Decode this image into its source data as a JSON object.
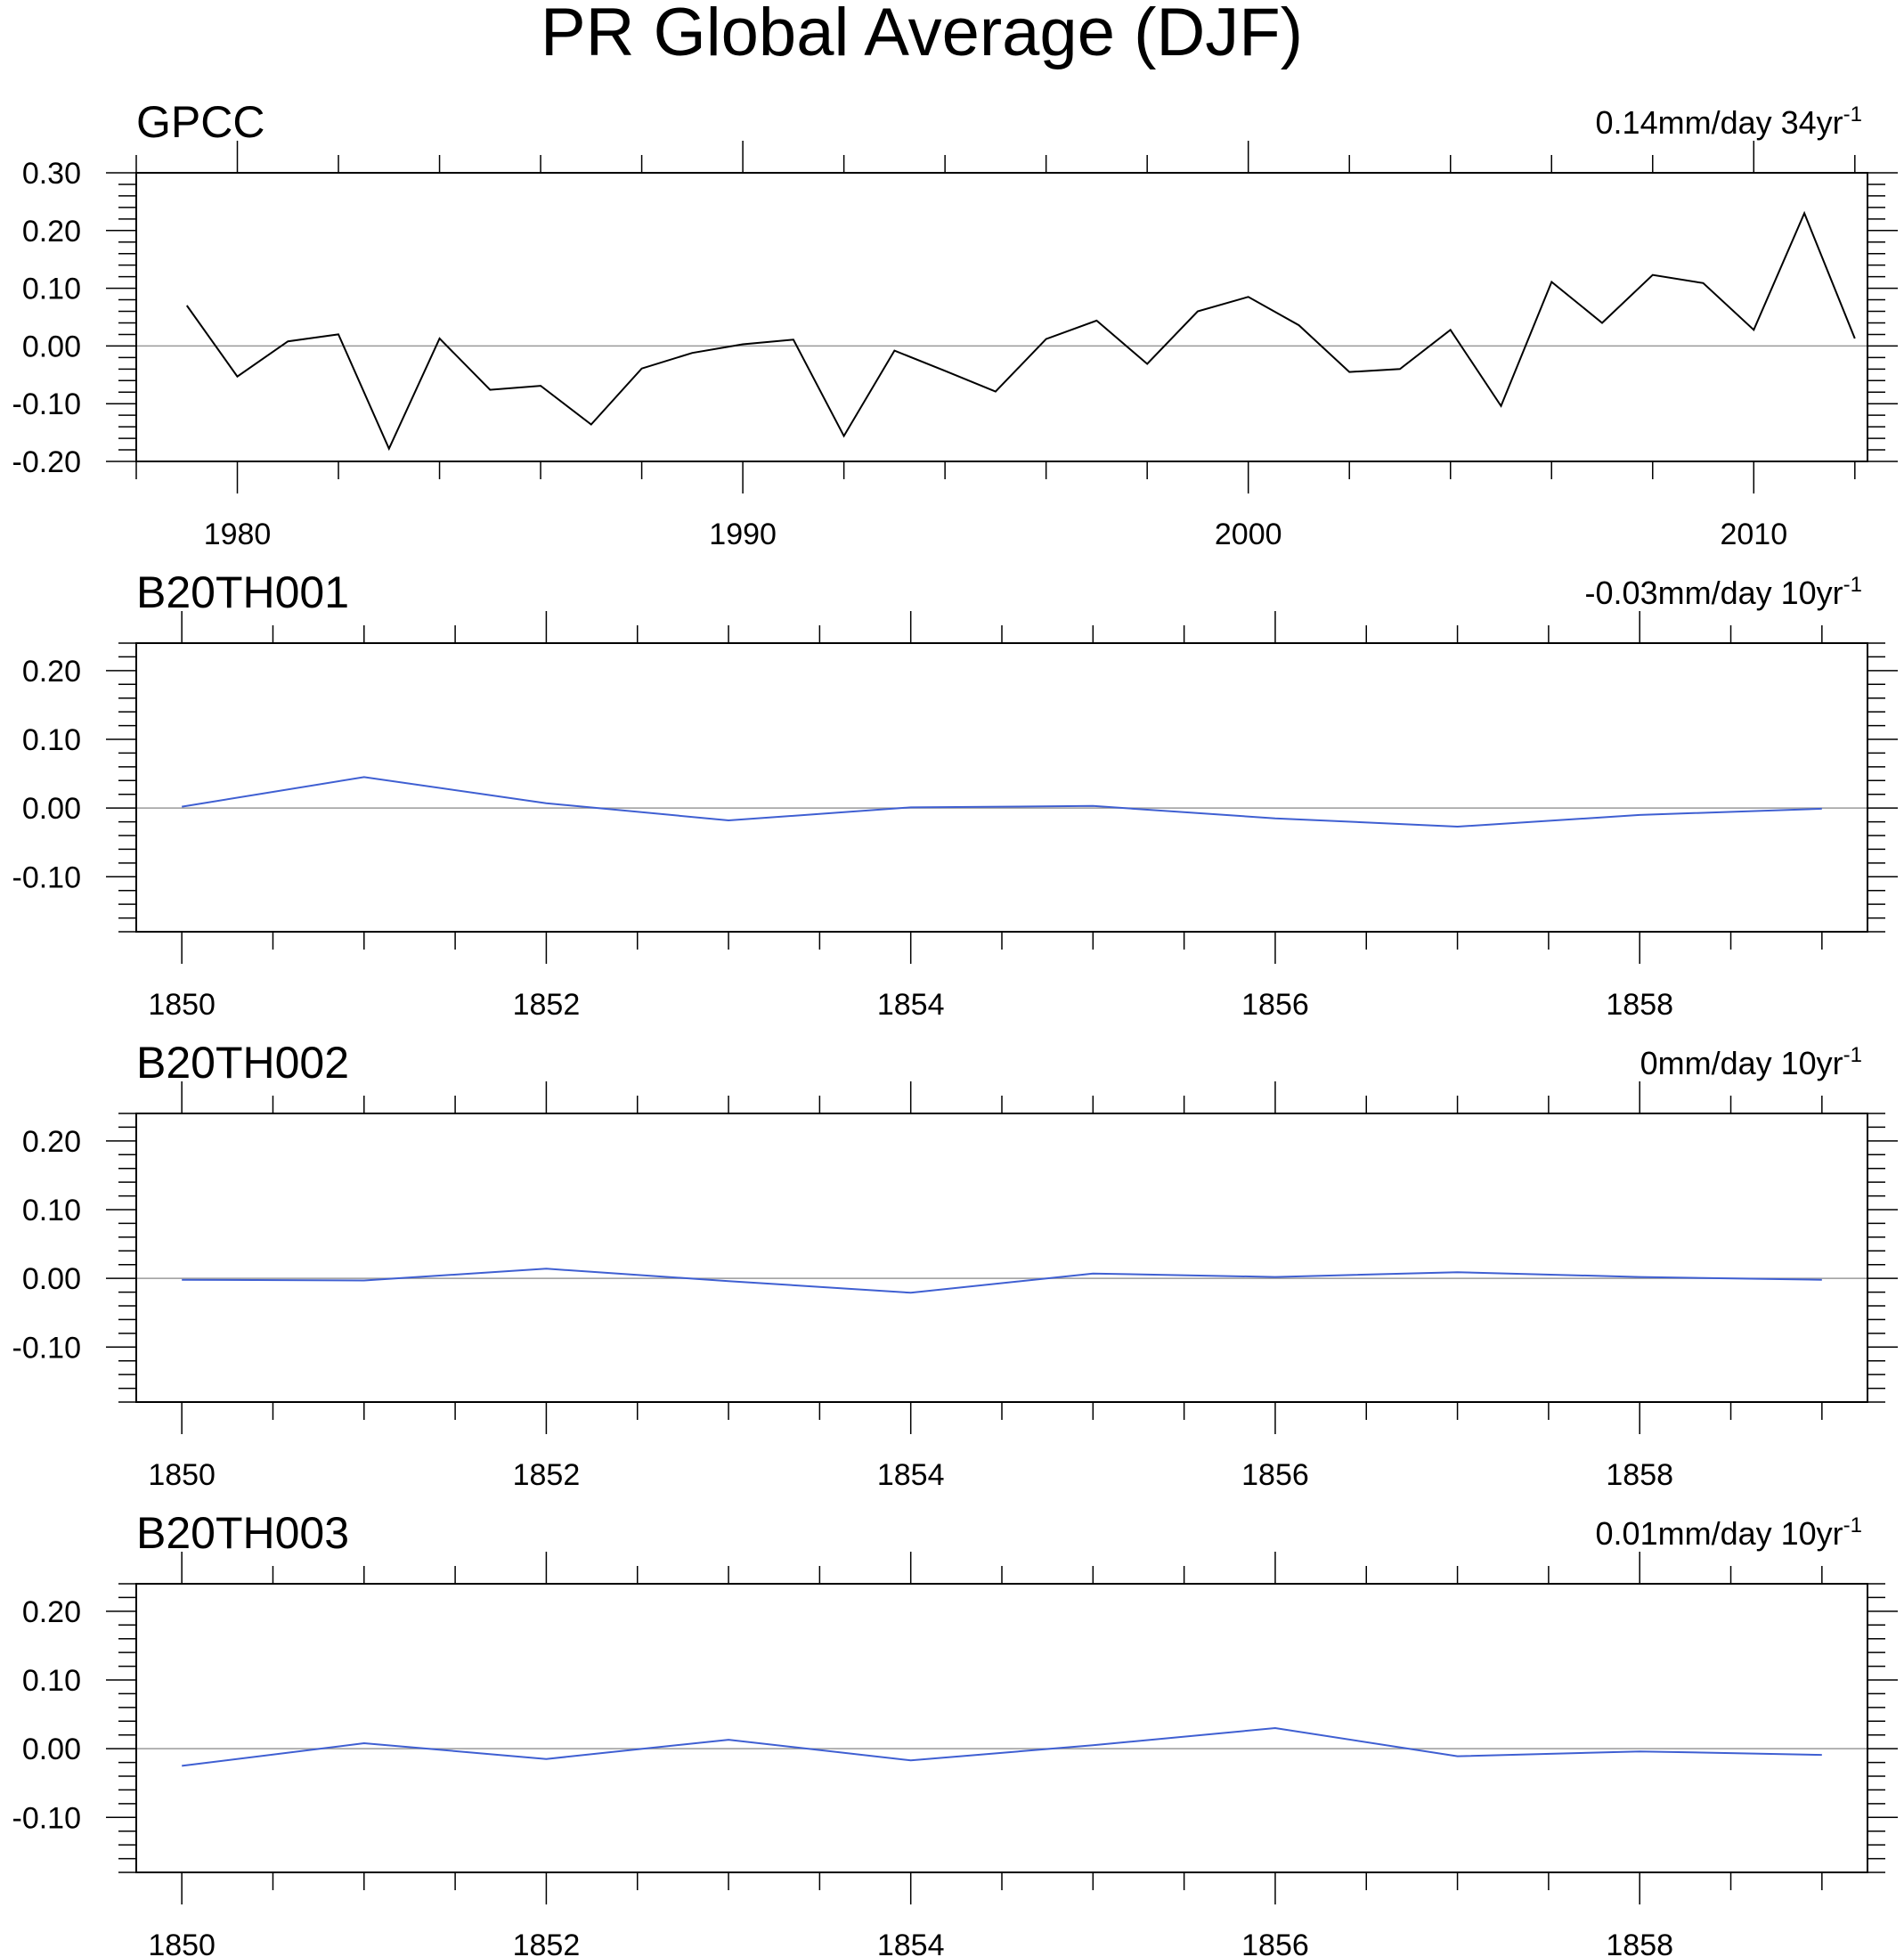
{
  "figure": {
    "title": "PR Global Average (DJF)"
  },
  "colors": {
    "gpcc_line": "#000000",
    "model_line": "#3f5fd2",
    "zero_line": "#9a9a9a",
    "axis": "#000000"
  },
  "chart_data": [
    {
      "type": "line",
      "title": "GPCC",
      "trend_label": "0.14mm/day 34yr",
      "trend_superscript": "-1",
      "xlabel": "",
      "ylabel": "",
      "xlim": [
        1978,
        2012.25
      ],
      "ylim": [
        -0.2,
        0.3
      ],
      "xticks": [
        1980,
        1990,
        2000,
        2010
      ],
      "xtick_labels": [
        "1980",
        "1990",
        "2000",
        "2010"
      ],
      "xminor": 2,
      "yticks": [
        -0.2,
        -0.1,
        0.0,
        0.1,
        0.2,
        0.3
      ],
      "ytick_labels": [
        "-0.20",
        "-0.10",
        "0.00",
        "0.10",
        "0.20",
        "0.30"
      ],
      "yminor": 0.02,
      "zero_line": true,
      "series": [
        {
          "color": "gpcc_line",
          "x": [
            1979,
            1980,
            1981,
            1982,
            1983,
            1984,
            1985,
            1986,
            1987,
            1988,
            1989,
            1990,
            1991,
            1992,
            1993,
            1994,
            1995,
            1996,
            1997,
            1998,
            1999,
            2000,
            2001,
            2002,
            2003,
            2004,
            2005,
            2006,
            2007,
            2008,
            2009,
            2010,
            2011,
            2012
          ],
          "values": [
            0.07,
            -0.053,
            0.008,
            0.02,
            -0.178,
            0.013,
            -0.076,
            -0.069,
            -0.136,
            -0.039,
            -0.012,
            0.003,
            0.011,
            -0.156,
            -0.008,
            -0.043,
            -0.079,
            0.012,
            0.044,
            -0.031,
            0.06,
            0.085,
            0.036,
            -0.045,
            -0.04,
            0.028,
            -0.104,
            0.111,
            0.04,
            0.123,
            0.109,
            0.028,
            0.23,
            0.013
          ]
        }
      ]
    },
    {
      "type": "line",
      "title": "B20TH001",
      "trend_label": "-0.03mm/day 10yr",
      "trend_superscript": "-1",
      "xlabel": "",
      "ylabel": "",
      "xlim": [
        1849.75,
        1859.25
      ],
      "ylim": [
        -0.18,
        0.24
      ],
      "xticks": [
        1850,
        1852,
        1854,
        1856,
        1858
      ],
      "xtick_labels": [
        "1850",
        "1852",
        "1854",
        "1856",
        "1858"
      ],
      "xminor": 0.5,
      "yticks": [
        -0.1,
        0.0,
        0.1,
        0.2
      ],
      "ytick_labels": [
        "-0.10",
        "0.00",
        "0.10",
        "0.20"
      ],
      "yminor": 0.02,
      "zero_line": true,
      "series": [
        {
          "color": "model_line",
          "x": [
            1850,
            1851,
            1852,
            1853,
            1854,
            1855,
            1856,
            1857,
            1858,
            1859
          ],
          "values": [
            0.002,
            0.045,
            0.007,
            -0.018,
            0.001,
            0.003,
            -0.015,
            -0.027,
            -0.01,
            -0.001
          ]
        }
      ]
    },
    {
      "type": "line",
      "title": "B20TH002",
      "trend_label": "0mm/day 10yr",
      "trend_superscript": "-1",
      "xlabel": "",
      "ylabel": "",
      "xlim": [
        1849.75,
        1859.25
      ],
      "ylim": [
        -0.18,
        0.24
      ],
      "xticks": [
        1850,
        1852,
        1854,
        1856,
        1858
      ],
      "xtick_labels": [
        "1850",
        "1852",
        "1854",
        "1856",
        "1858"
      ],
      "xminor": 0.5,
      "yticks": [
        -0.1,
        0.0,
        0.1,
        0.2
      ],
      "ytick_labels": [
        "-0.10",
        "0.00",
        "0.10",
        "0.20"
      ],
      "yminor": 0.02,
      "zero_line": true,
      "series": [
        {
          "color": "model_line",
          "x": [
            1850,
            1851,
            1852,
            1853,
            1854,
            1855,
            1856,
            1857,
            1858,
            1859
          ],
          "values": [
            -0.002,
            -0.003,
            0.014,
            -0.004,
            -0.021,
            0.007,
            0.002,
            0.009,
            0.002,
            -0.002
          ]
        }
      ]
    },
    {
      "type": "line",
      "title": "B20TH003",
      "trend_label": "0.01mm/day 10yr",
      "trend_superscript": "-1",
      "xlabel": "",
      "ylabel": "",
      "xlim": [
        1849.75,
        1859.25
      ],
      "ylim": [
        -0.18,
        0.24
      ],
      "xticks": [
        1850,
        1852,
        1854,
        1856,
        1858
      ],
      "xtick_labels": [
        "1850",
        "1852",
        "1854",
        "1856",
        "1858"
      ],
      "xminor": 0.5,
      "yticks": [
        -0.1,
        0.0,
        0.1,
        0.2
      ],
      "ytick_labels": [
        "-0.10",
        "0.00",
        "0.10",
        "0.20"
      ],
      "yminor": 0.02,
      "zero_line": true,
      "series": [
        {
          "color": "model_line",
          "x": [
            1850,
            1851,
            1852,
            1853,
            1854,
            1855,
            1856,
            1857,
            1858,
            1859
          ],
          "values": [
            -0.025,
            0.008,
            -0.015,
            0.013,
            -0.017,
            0.005,
            0.03,
            -0.011,
            -0.004,
            -0.009
          ]
        }
      ]
    }
  ]
}
